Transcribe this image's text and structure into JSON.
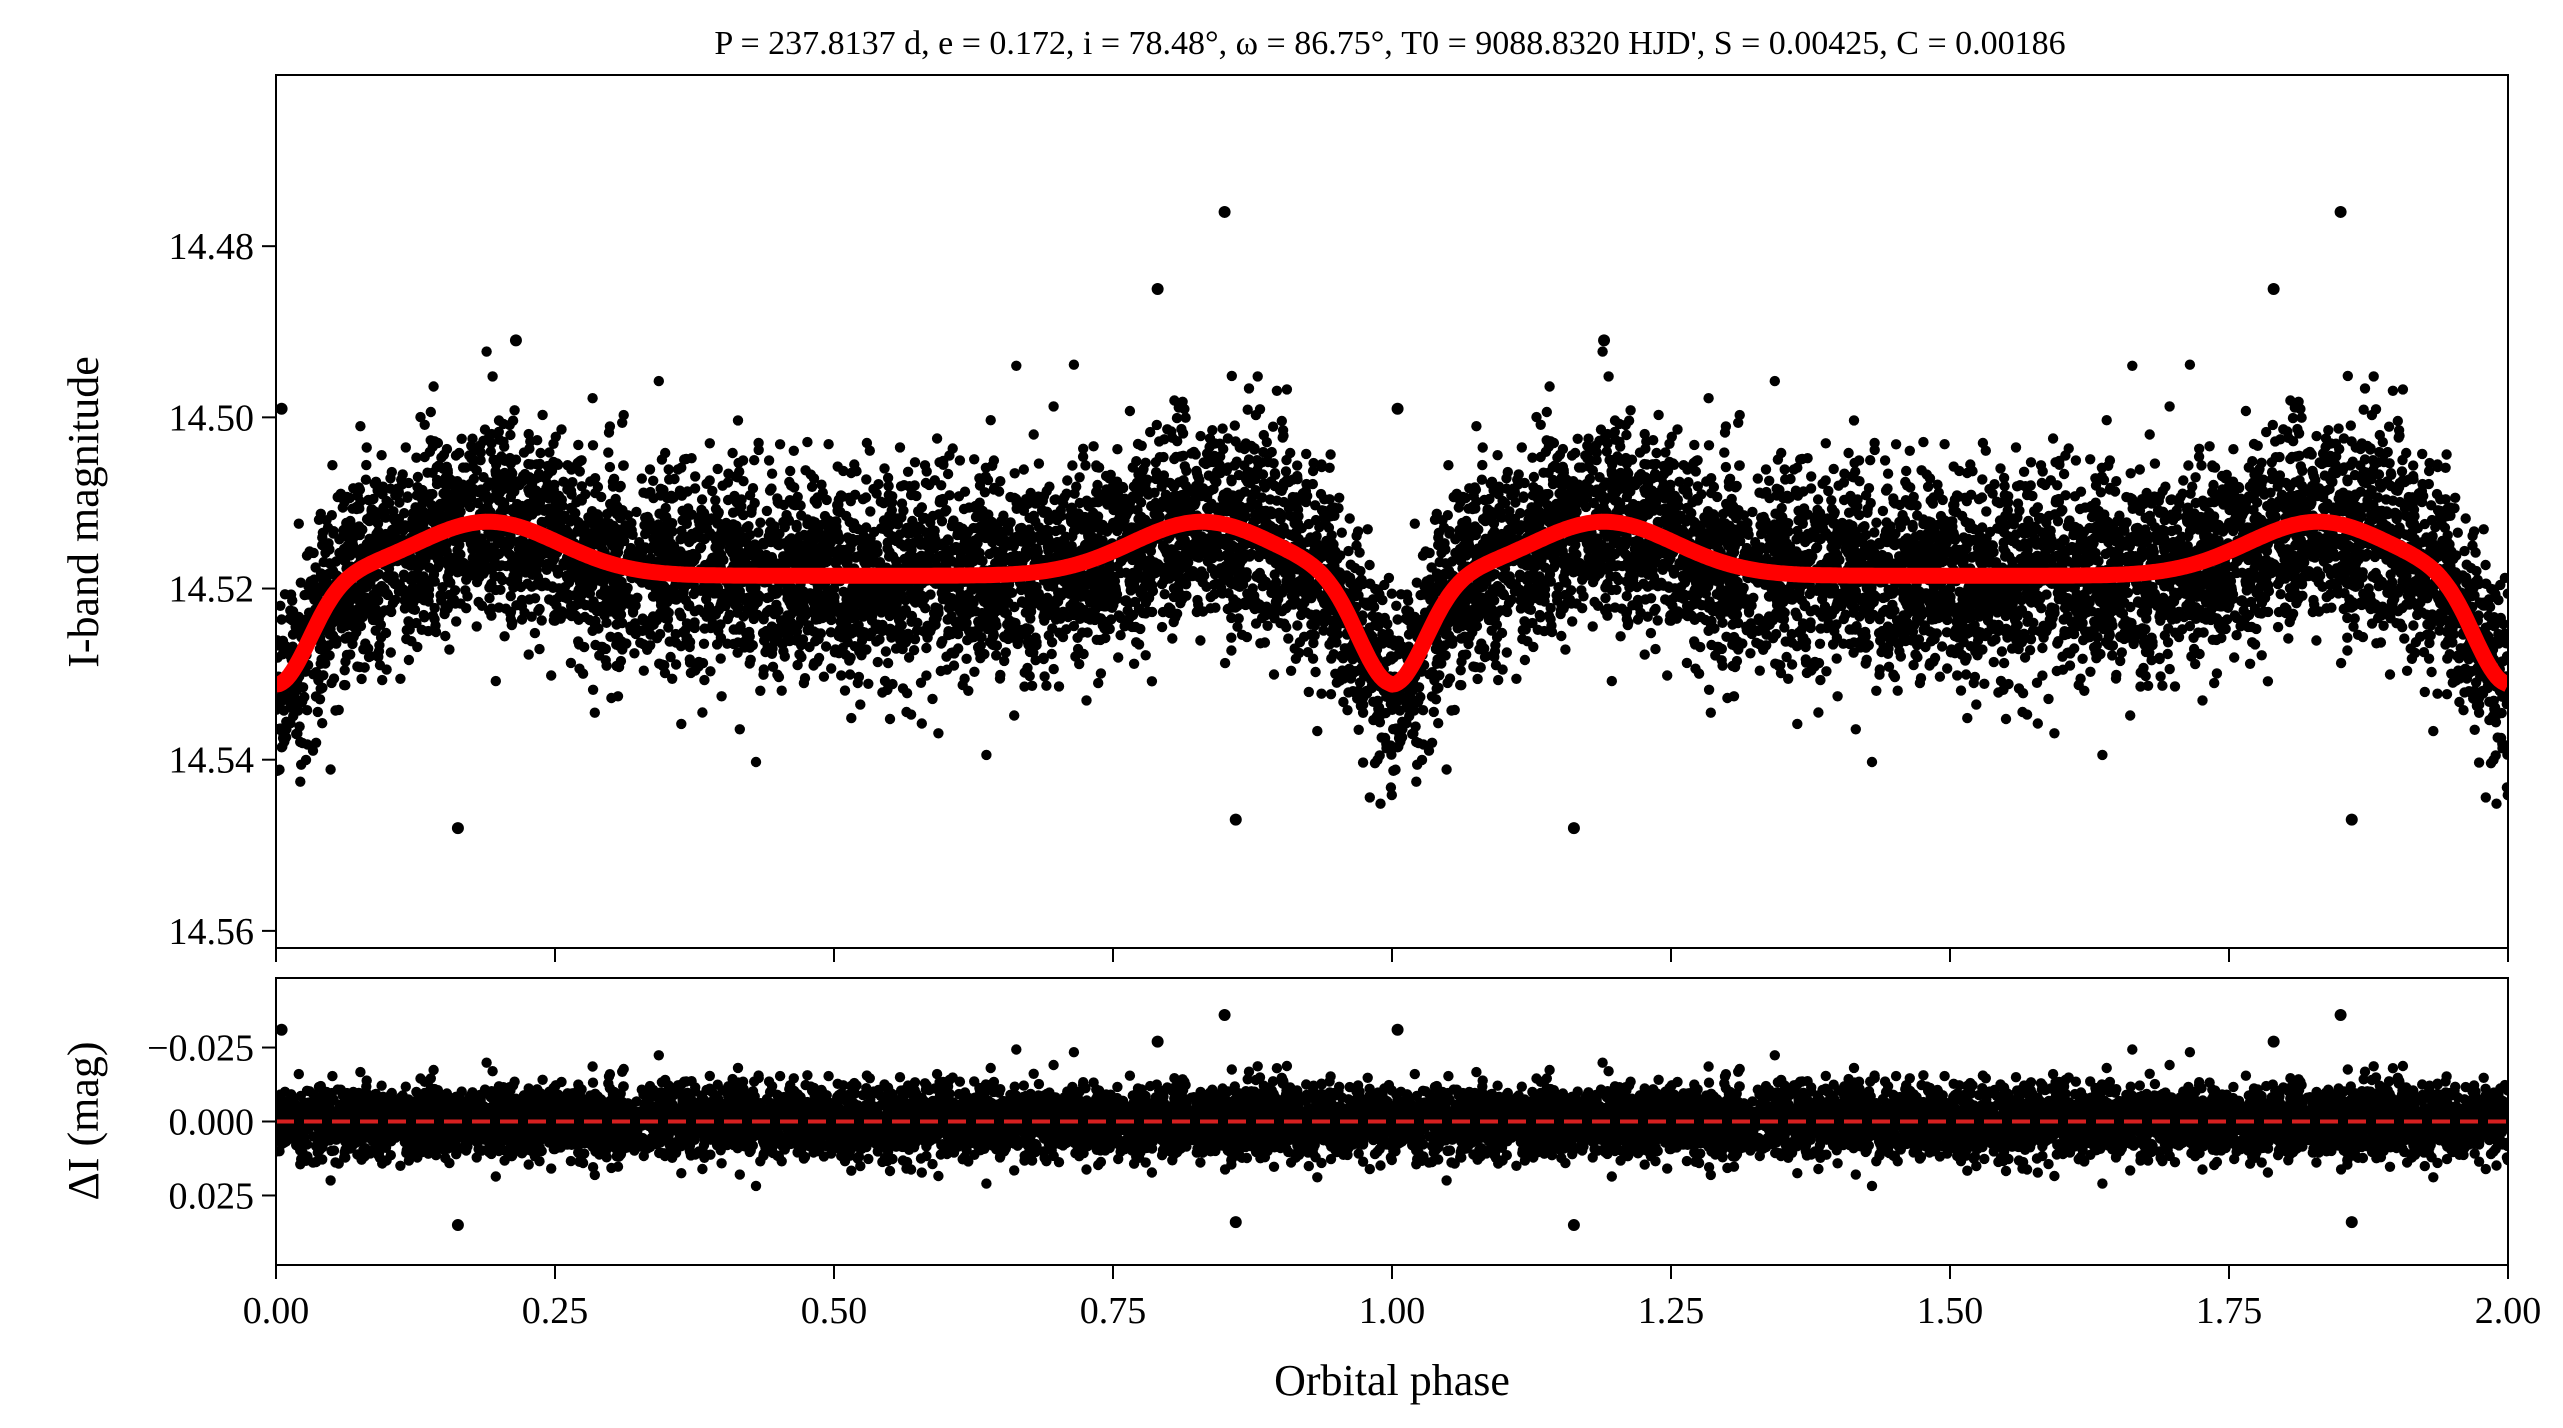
{
  "figure": {
    "title": "P = 237.8137 d, e = 0.172, i = 78.48°, ω = 86.75°, T0 = 9088.8320 HJD', S = 0.00425, C = 0.00186"
  },
  "chart_data": [
    {
      "type": "scatter",
      "panel": "top",
      "xlabel": "",
      "ylabel": "I-band magnitude",
      "xlim": [
        0.0,
        2.0
      ],
      "ylim": [
        14.562,
        14.46
      ],
      "y_inverted": true,
      "yticks": [
        14.48,
        14.5,
        14.52,
        14.54,
        14.56
      ],
      "ytick_labels": [
        "14.48",
        "14.50",
        "14.52",
        "14.54",
        "14.56"
      ],
      "grid": false,
      "series": [
        {
          "kind": "points",
          "color": "#000000",
          "description_of_trend": "dense photometry scattered ~±0.01 mag around model",
          "outliers": [
            [
              0.005,
              14.499
            ],
            [
              0.163,
              14.548
            ],
            [
              0.215,
              14.491
            ],
            [
              0.79,
              14.485
            ],
            [
              0.85,
              14.476
            ],
            [
              0.86,
              14.547
            ],
            [
              1.005,
              14.499
            ],
            [
              1.163,
              14.548
            ],
            [
              1.19,
              14.491
            ],
            [
              1.79,
              14.485
            ],
            [
              1.85,
              14.476
            ],
            [
              1.86,
              14.547
            ]
          ]
        },
        {
          "kind": "model-line",
          "color": "#ff0000",
          "x": [
            0.0,
            0.05,
            0.1,
            0.15,
            0.19,
            0.25,
            0.3,
            0.4,
            0.5,
            0.6,
            0.7,
            0.78,
            0.83,
            0.88,
            0.93,
            0.97,
            1.0,
            1.03,
            1.07,
            1.12,
            1.19,
            1.25,
            1.3,
            1.4,
            1.5,
            1.6,
            1.7,
            1.78,
            1.83,
            1.88,
            1.93,
            1.97,
            2.0
          ],
          "y": [
            14.5313,
            14.5257,
            14.5177,
            14.5129,
            14.512,
            14.5131,
            14.5148,
            14.5175,
            14.5185,
            14.5176,
            14.5147,
            14.5125,
            14.512,
            14.5143,
            14.5213,
            14.529,
            14.5313,
            14.529,
            14.5213,
            14.5143,
            14.512,
            14.5131,
            14.5148,
            14.5175,
            14.5185,
            14.5176,
            14.5147,
            14.5125,
            14.512,
            14.5143,
            14.5213,
            14.529,
            14.5313
          ]
        }
      ]
    },
    {
      "type": "scatter",
      "panel": "bottom",
      "xlabel": "Orbital phase",
      "ylabel": "ΔI (mag)",
      "xlim": [
        0.0,
        2.0
      ],
      "ylim": [
        0.0485,
        -0.0485
      ],
      "y_inverted": true,
      "xticks": [
        0.0,
        0.25,
        0.5,
        0.75,
        1.0,
        1.25,
        1.5,
        1.75,
        2.0
      ],
      "xtick_labels": [
        "0.00",
        "0.25",
        "0.50",
        "0.75",
        "1.00",
        "1.25",
        "1.50",
        "1.75",
        "2.00"
      ],
      "yticks": [
        -0.025,
        0.0,
        0.025
      ],
      "ytick_labels": [
        "−0.025",
        "0.000",
        "0.025"
      ],
      "grid": false,
      "series": [
        {
          "kind": "points",
          "color": "#000000",
          "description_of_trend": "residuals scattered ~±0.01 mag around zero",
          "outliers": [
            [
              0.005,
              -0.031
            ],
            [
              0.163,
              0.035
            ],
            [
              0.79,
              -0.027
            ],
            [
              0.85,
              -0.036
            ],
            [
              0.86,
              0.034
            ],
            [
              1.005,
              -0.031
            ],
            [
              1.163,
              0.035
            ],
            [
              1.79,
              -0.027
            ],
            [
              1.85,
              -0.036
            ],
            [
              1.86,
              0.034
            ]
          ]
        },
        {
          "kind": "reference-line",
          "style": "dashed",
          "color": "#d62020",
          "y": 0.0
        }
      ]
    }
  ]
}
